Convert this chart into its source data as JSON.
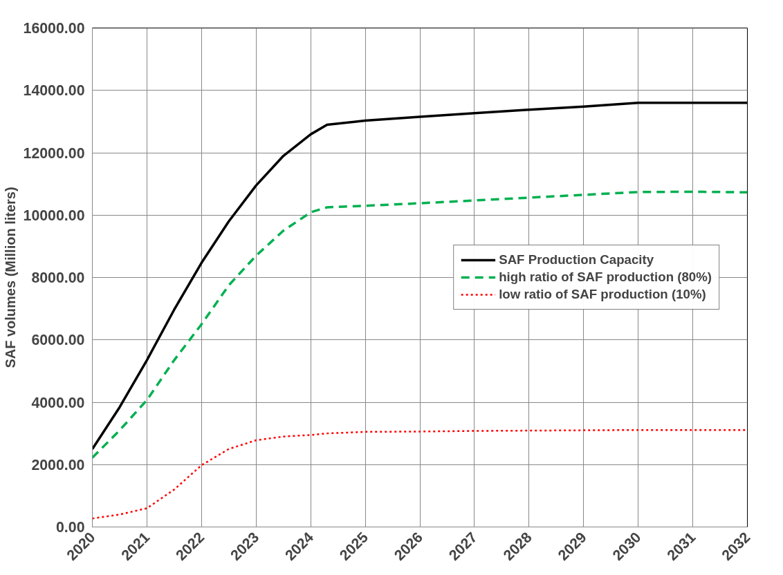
{
  "chart_data": {
    "type": "line",
    "ylabel": "SAF volumes (Million liters)",
    "xlim": [
      2020,
      2032
    ],
    "xticks": [
      2020,
      2021,
      2022,
      2023,
      2024,
      2025,
      2026,
      2027,
      2028,
      2029,
      2030,
      2031,
      2032
    ],
    "ylim": [
      0,
      16000
    ],
    "yticks": [
      {
        "value": 0,
        "label": "0.00"
      },
      {
        "value": 2000,
        "label": "2000.00"
      },
      {
        "value": 4000,
        "label": "4000.00"
      },
      {
        "value": 6000,
        "label": "6000.00"
      },
      {
        "value": 8000,
        "label": "8000.00"
      },
      {
        "value": 10000,
        "label": "10000.00"
      },
      {
        "value": 12000,
        "label": "12000.00"
      },
      {
        "value": 14000,
        "label": "14000.00"
      },
      {
        "value": 16000,
        "label": "16000.00"
      }
    ],
    "grid": true,
    "legend": "right",
    "marker": "none",
    "x": [
      2020,
      2020.5,
      2021,
      2021.5,
      2022,
      2022.5,
      2023,
      2023.5,
      2024,
      2024.3,
      2025,
      2026,
      2027,
      2028,
      2029,
      2030,
      2031,
      2032
    ],
    "series": [
      {
        "name": "SAF Production Capacity",
        "color": "#000000",
        "line_style": "solid",
        "values": [
          2500,
          3840,
          5350,
          6970,
          8470,
          9800,
          10950,
          11900,
          12590,
          12900,
          13030,
          13150,
          13270,
          13380,
          13480,
          13600,
          13600,
          13600
        ]
      },
      {
        "name": "high ratio of SAF production (80%)",
        "color": "#00b050",
        "line_style": "dashed",
        "values": [
          2220,
          3100,
          4070,
          5350,
          6500,
          7750,
          8700,
          9500,
          10090,
          10250,
          10300,
          10380,
          10470,
          10560,
          10650,
          10740,
          10750,
          10730
        ]
      },
      {
        "name": "low ratio of SAF production (10%)",
        "color": "#ff0000",
        "line_style": "dotted",
        "values": [
          270,
          400,
          600,
          1200,
          1980,
          2500,
          2780,
          2900,
          2950,
          3000,
          3050,
          3060,
          3080,
          3090,
          3100,
          3110,
          3110,
          3110
        ]
      }
    ]
  }
}
